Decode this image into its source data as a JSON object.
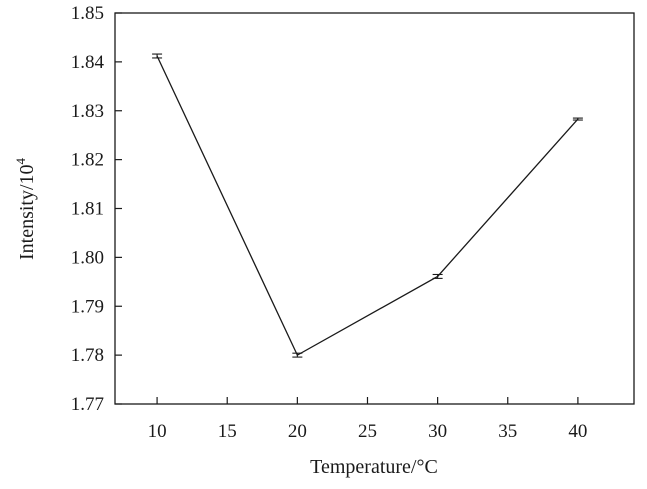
{
  "chart_data": {
    "type": "line",
    "title": "",
    "xlabel": "Temperature/°C",
    "ylabel": "Intensity/10",
    "ylabel_superscript": "4",
    "xlim": [
      7,
      44
    ],
    "ylim": [
      1.77,
      1.85
    ],
    "x_ticks": [
      10,
      15,
      20,
      25,
      30,
      35,
      40
    ],
    "x_tick_labels": [
      "10",
      "15",
      "20",
      "25",
      "30",
      "35",
      "40"
    ],
    "y_ticks": [
      1.77,
      1.78,
      1.79,
      1.8,
      1.81,
      1.82,
      1.83,
      1.84,
      1.85
    ],
    "y_tick_labels": [
      "1.77",
      "1.78",
      "1.79",
      "1.80",
      "1.81",
      "1.82",
      "1.83",
      "1.84",
      "1.85"
    ],
    "grid": false,
    "legend": "none",
    "series": [
      {
        "x": [
          10,
          20,
          30,
          40
        ],
        "values": [
          1.8412,
          1.78,
          1.7961,
          1.8283
        ],
        "error": [
          0.0004,
          0.0004,
          0.0004,
          0.0002
        ],
        "color": "#1a1a1a"
      }
    ]
  }
}
